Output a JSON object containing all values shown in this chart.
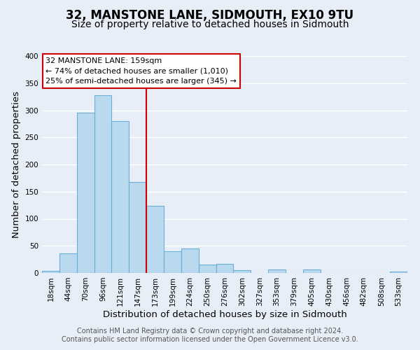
{
  "title": "32, MANSTONE LANE, SIDMOUTH, EX10 9TU",
  "subtitle": "Size of property relative to detached houses in Sidmouth",
  "xlabel": "Distribution of detached houses by size in Sidmouth",
  "ylabel": "Number of detached properties",
  "bar_labels": [
    "18sqm",
    "44sqm",
    "70sqm",
    "96sqm",
    "121sqm",
    "147sqm",
    "173sqm",
    "199sqm",
    "224sqm",
    "250sqm",
    "276sqm",
    "302sqm",
    "327sqm",
    "353sqm",
    "379sqm",
    "405sqm",
    "430sqm",
    "456sqm",
    "482sqm",
    "508sqm",
    "533sqm"
  ],
  "bar_heights": [
    4,
    36,
    295,
    328,
    280,
    168,
    124,
    40,
    45,
    16,
    17,
    5,
    0,
    7,
    0,
    6,
    0,
    0,
    0,
    0,
    2
  ],
  "bar_color": "#b8d9ee",
  "bar_edge_color": "#6aafd6",
  "vline_index": 5,
  "vline_color": "#cc0000",
  "ylim": [
    0,
    400
  ],
  "yticks": [
    0,
    50,
    100,
    150,
    200,
    250,
    300,
    350,
    400
  ],
  "annotation_title": "32 MANSTONE LANE: 159sqm",
  "annotation_line1": "← 74% of detached houses are smaller (1,010)",
  "annotation_line2": "25% of semi-detached houses are larger (345) →",
  "annotation_box_color": "#ffffff",
  "annotation_box_edge": "#cc0000",
  "footer_line1": "Contains HM Land Registry data © Crown copyright and database right 2024.",
  "footer_line2": "Contains public sector information licensed under the Open Government Licence v3.0.",
  "background_color": "#e8eef8",
  "grid_color": "#ffffff",
  "title_fontsize": 12,
  "subtitle_fontsize": 10,
  "axis_label_fontsize": 9.5,
  "tick_fontsize": 7.5,
  "footer_fontsize": 7
}
